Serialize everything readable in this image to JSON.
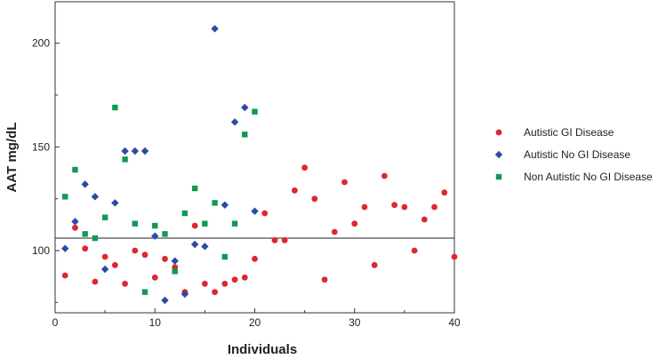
{
  "chart_data": {
    "type": "scatter",
    "title": "",
    "xlabel": "Individuals",
    "ylabel": "AAT mg/dL",
    "xlim": [
      0,
      40
    ],
    "ylim": [
      70,
      220
    ],
    "x_ticks": [
      0,
      10,
      20,
      30,
      40
    ],
    "y_ticks": [
      100,
      150,
      200
    ],
    "grid": false,
    "legend_position": "right",
    "reference_line": {
      "y": 106
    },
    "series": [
      {
        "name": "Autistic GI Disease",
        "marker": "circle",
        "color": "#e0262b",
        "points": [
          [
            1,
            88
          ],
          [
            2,
            111
          ],
          [
            3,
            101
          ],
          [
            4,
            85
          ],
          [
            5,
            97
          ],
          [
            6,
            93
          ],
          [
            7,
            84
          ],
          [
            8,
            100
          ],
          [
            9,
            98
          ],
          [
            10,
            87
          ],
          [
            11,
            96
          ],
          [
            12,
            92
          ],
          [
            13,
            80
          ],
          [
            14,
            112
          ],
          [
            15,
            84
          ],
          [
            16,
            80
          ],
          [
            17,
            84
          ],
          [
            18,
            86
          ],
          [
            19,
            87
          ],
          [
            20,
            96
          ],
          [
            21,
            118
          ],
          [
            22,
            105
          ],
          [
            23,
            105
          ],
          [
            24,
            129
          ],
          [
            25,
            140
          ],
          [
            26,
            125
          ],
          [
            27,
            86
          ],
          [
            28,
            109
          ],
          [
            29,
            133
          ],
          [
            30,
            113
          ],
          [
            31,
            121
          ],
          [
            32,
            93
          ],
          [
            33,
            136
          ],
          [
            34,
            122
          ],
          [
            35,
            121
          ],
          [
            36,
            100
          ],
          [
            37,
            115
          ],
          [
            38,
            121
          ],
          [
            39,
            128
          ],
          [
            40,
            97
          ]
        ]
      },
      {
        "name": "Autistic No GI Disease",
        "marker": "diamond",
        "color": "#2c4aa0",
        "points": [
          [
            1,
            101
          ],
          [
            2,
            114
          ],
          [
            3,
            132
          ],
          [
            4,
            126
          ],
          [
            5,
            91
          ],
          [
            6,
            123
          ],
          [
            7,
            148
          ],
          [
            8,
            148
          ],
          [
            9,
            148
          ],
          [
            10,
            107
          ],
          [
            11,
            76
          ],
          [
            12,
            95
          ],
          [
            13,
            79
          ],
          [
            14,
            103
          ],
          [
            15,
            102
          ],
          [
            16,
            207
          ],
          [
            17,
            122
          ],
          [
            18,
            162
          ],
          [
            19,
            169
          ],
          [
            20,
            119
          ]
        ]
      },
      {
        "name": "Non Autistic No GI Disease",
        "marker": "square",
        "color": "#0e9a52",
        "points": [
          [
            1,
            126
          ],
          [
            2,
            139
          ],
          [
            3,
            108
          ],
          [
            4,
            106
          ],
          [
            5,
            116
          ],
          [
            6,
            169
          ],
          [
            7,
            144
          ],
          [
            8,
            113
          ],
          [
            9,
            80
          ],
          [
            10,
            112
          ],
          [
            11,
            108
          ],
          [
            12,
            90
          ],
          [
            13,
            118
          ],
          [
            14,
            130
          ],
          [
            15,
            113
          ],
          [
            16,
            123
          ],
          [
            17,
            97
          ],
          [
            18,
            113
          ],
          [
            19,
            156
          ],
          [
            20,
            167
          ]
        ]
      }
    ]
  }
}
